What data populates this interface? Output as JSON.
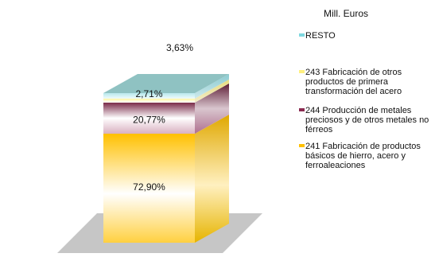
{
  "chart_data": {
    "type": "bar",
    "subtype": "stacked-3d-single-column",
    "unit_label": "Mill. Euros",
    "series": [
      {
        "name": "241 Fabricación de productos básicos de hierro, acero y ferroaleaciones",
        "value": 72.9,
        "label": "72,90%",
        "color": "#ffc000"
      },
      {
        "name": "244 Producción de metales preciosos y de otros metales no férreos",
        "value": 20.77,
        "label": "20,77%",
        "color": "#7a2a48"
      },
      {
        "name": "243 Fabricación de otros productos de primera transformación del acero",
        "value": 2.71,
        "label": "2,71%",
        "color": "#fff5a0"
      },
      {
        "name": "RESTO",
        "value": 3.63,
        "label": "3,63%",
        "color": "#b8e8ec"
      }
    ],
    "legend_order": [
      "RESTO",
      "243 Fabricación de otros productos de primera transformación del acero",
      "244 Producción de metales preciosos y de otros metales no férreos",
      "241 Fabricación de productos básicos de hierro, acero y ferroaleaciones"
    ],
    "top_color": "#8fc2c2",
    "floor_color": "#c6c6c6",
    "legend_position": "right"
  },
  "legend": [
    {
      "label": "RESTO",
      "color": "#7fd8e0"
    },
    {
      "label": "243 Fabricación de otros productos de primera transformación del acero",
      "color": "#fff080"
    },
    {
      "label": "244 Producción de metales preciosos y de otros metales no férreos",
      "color": "#8a2a50"
    },
    {
      "label": "241 Fabricación de productos básicos de hierro, acero y ferroaleaciones",
      "color": "#ffc000"
    }
  ]
}
